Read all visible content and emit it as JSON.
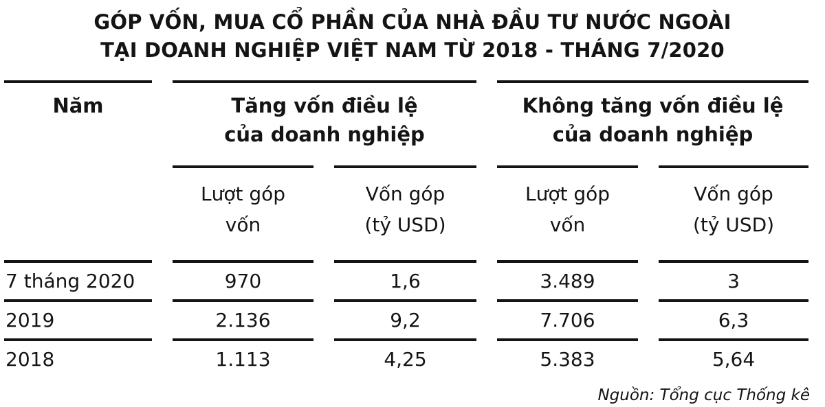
{
  "title": {
    "line1": "GÓP VỐN, MUA CỔ PHẦN CỦA NHÀ ĐẦU TƯ NƯỚC NGOÀI",
    "line2": "TẠI DOANH NGHIỆP VIỆT NAM TỪ 2018 - THÁNG 7/2020"
  },
  "table": {
    "year_header": "Năm",
    "groups": [
      {
        "line1": "Tăng vốn điều lệ",
        "line2": "của doanh nghiệp"
      },
      {
        "line1": "Không tăng vốn điều lệ",
        "line2": "của doanh nghiệp"
      }
    ],
    "subheaders": [
      {
        "line1": "Lượt góp",
        "line2": "vốn"
      },
      {
        "line1": "Vốn góp",
        "line2": "(tỷ USD)"
      },
      {
        "line1": "Lượt góp",
        "line2": "vốn"
      },
      {
        "line1": "Vốn góp",
        "line2": "(tỷ USD)"
      }
    ],
    "rows": [
      {
        "year": "7 tháng 2020",
        "values": [
          "970",
          "1,6",
          "3.489",
          "3"
        ]
      },
      {
        "year": "2019",
        "values": [
          "2.136",
          "9,2",
          "7.706",
          "6,3"
        ]
      },
      {
        "year": "2018",
        "values": [
          "1.113",
          "4,25",
          "5.383",
          "5,64"
        ]
      }
    ]
  },
  "source": "Nguồn: Tổng cục Thống kê",
  "colors": {
    "text": "#141414",
    "background": "#ffffff",
    "rule": "#141414"
  },
  "chart_data": {
    "type": "table",
    "title": "GÓP VỐN, MUA CỔ PHẦN CỦA NHÀ ĐẦU TƯ NƯỚC NGOÀI TẠI DOANH NGHIỆP VIỆT NAM TỪ 2018 - THÁNG 7/2020",
    "column_groups": [
      "Năm",
      "Tăng vốn điều lệ của doanh nghiệp",
      "Không tăng vốn điều lệ của doanh nghiệp"
    ],
    "columns": [
      "Năm",
      "Tăng vốn điều lệ của doanh nghiệp — Lượt góp vốn",
      "Tăng vốn điều lệ của doanh nghiệp — Vốn góp (tỷ USD)",
      "Không tăng vốn điều lệ của doanh nghiệp — Lượt góp vốn",
      "Không tăng vốn điều lệ của doanh nghiệp — Vốn góp (tỷ USD)"
    ],
    "rows": [
      [
        "7 tháng 2020",
        970,
        1.6,
        3489,
        3
      ],
      [
        "2019",
        2136,
        9.2,
        7706,
        6.3
      ],
      [
        "2018",
        1113,
        4.25,
        5383,
        5.64
      ]
    ],
    "source": "Nguồn: Tổng cục Thống kê"
  }
}
